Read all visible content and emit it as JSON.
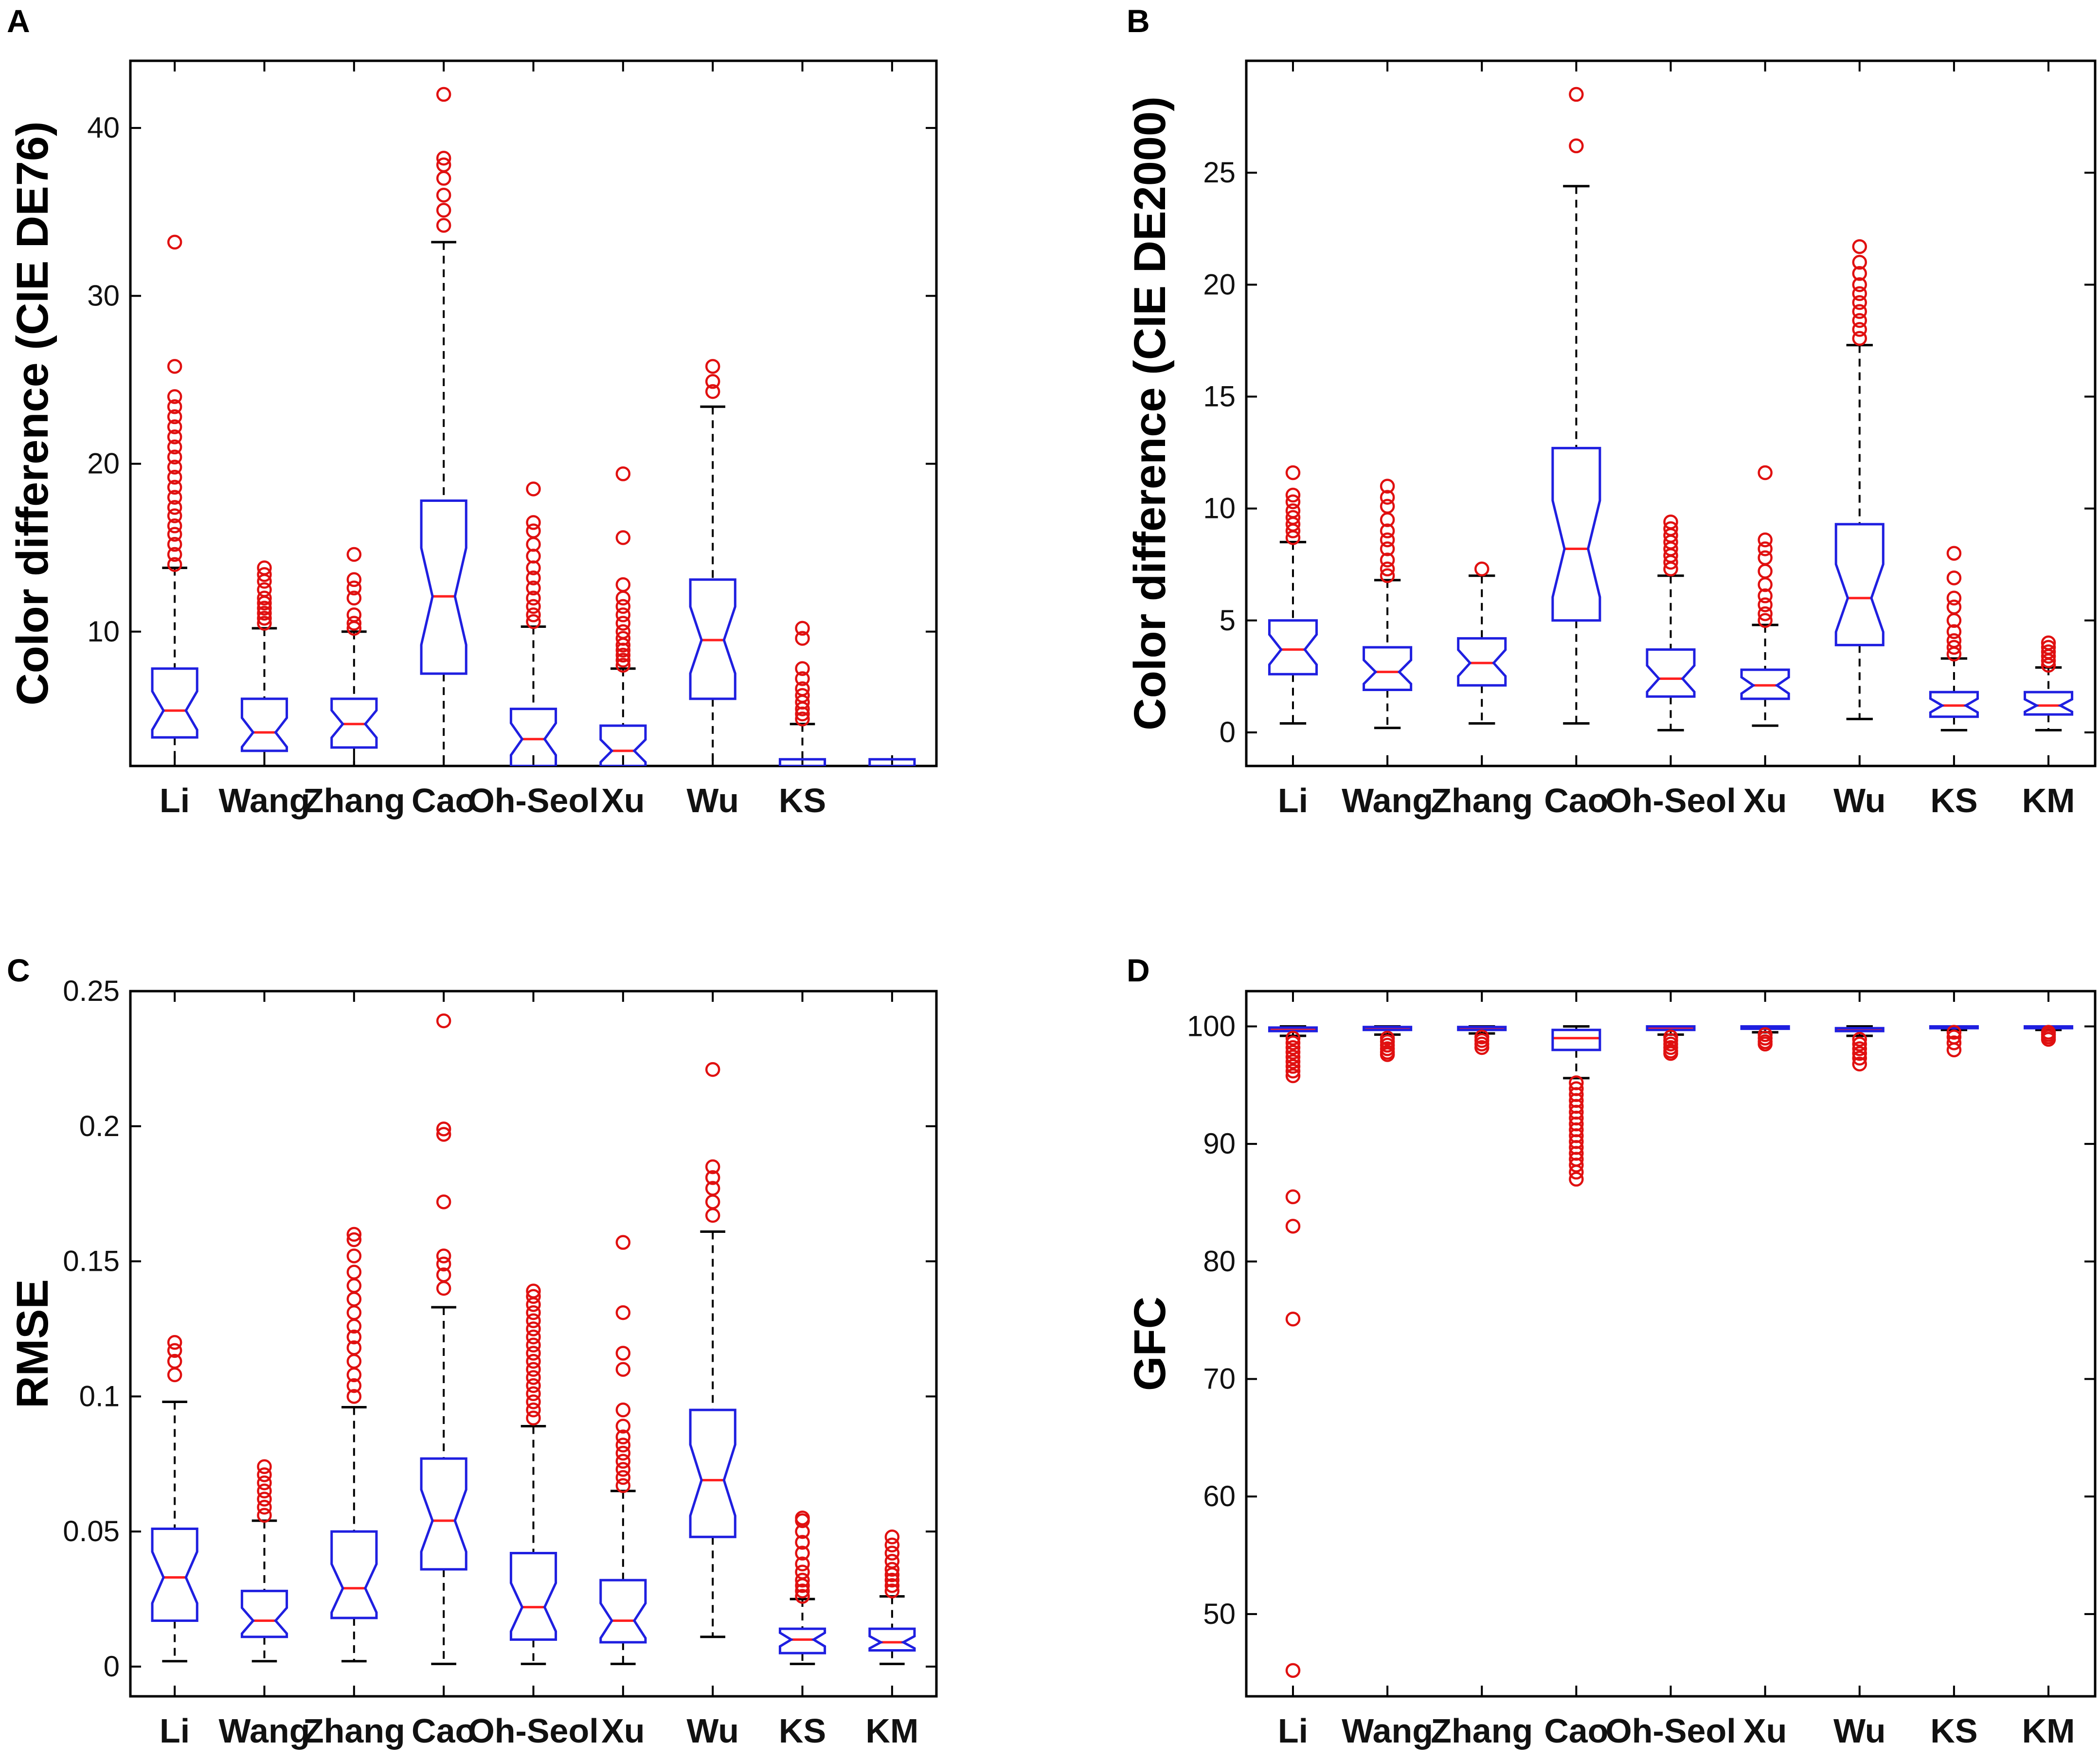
{
  "colors": {
    "box": "#1f1fe0",
    "median": "#ff2020",
    "outlier": "#e01010",
    "whisker": "#000000",
    "frame": "#000000"
  },
  "chart_data": [
    {
      "panel": "A",
      "type": "boxplot",
      "ylabel": "Color difference (CIE DE76)",
      "ylim": [
        2,
        44
      ],
      "yticks": [
        10,
        20,
        30,
        40
      ],
      "notched": true,
      "categories": [
        "Li",
        "Wang",
        "Zhang",
        "Cao",
        "Oh-Seol",
        "Xu",
        "Wu",
        "KS",
        ""
      ],
      "boxes": [
        {
          "name": "Li",
          "q1": 3.7,
          "median": 5.3,
          "q3": 7.8,
          "wlo": 2,
          "whi": 13.8,
          "outliers": [
            14.0,
            14.6,
            15.2,
            15.8,
            16.3,
            16.9,
            17.4,
            18.0,
            18.6,
            19.2,
            19.8,
            20.4,
            21.0,
            21.6,
            22.2,
            22.8,
            23.4,
            24.0,
            25.8,
            33.2
          ]
        },
        {
          "name": "Wang",
          "q1": 2.9,
          "median": 4.0,
          "q3": 6.0,
          "wlo": 2,
          "whi": 10.2,
          "outliers": [
            10.5,
            10.8,
            11.1,
            11.4,
            11.7,
            12.0,
            12.5,
            13.0,
            13.4,
            13.8
          ]
        },
        {
          "name": "Zhang",
          "q1": 3.1,
          "median": 4.5,
          "q3": 6.0,
          "wlo": 2,
          "whi": 10.0,
          "outliers": [
            10.2,
            10.5,
            11.0,
            12.0,
            12.6,
            13.1,
            14.6
          ]
        },
        {
          "name": "Cao",
          "q1": 7.5,
          "median": 12.1,
          "q3": 17.8,
          "wlo": 2,
          "whi": 33.2,
          "outliers": [
            34.2,
            35.1,
            36.0,
            37.0,
            37.8,
            38.2,
            42.0
          ]
        },
        {
          "name": "Oh-Seol",
          "q1": 2,
          "median": 3.6,
          "q3": 5.4,
          "wlo": 2,
          "whi": 10.3,
          "outliers": [
            10.6,
            11.0,
            11.5,
            12.0,
            12.6,
            13.2,
            13.8,
            14.5,
            15.2,
            16.0,
            16.5,
            18.5
          ]
        },
        {
          "name": "Xu",
          "q1": 2,
          "median": 2.9,
          "q3": 4.4,
          "wlo": 2,
          "whi": 7.8,
          "outliers": [
            8.0,
            8.3,
            8.6,
            8.9,
            9.2,
            9.6,
            10.0,
            10.5,
            11.0,
            11.5,
            12.0,
            12.8,
            15.6,
            19.4
          ]
        },
        {
          "name": "Wu",
          "q1": 6.0,
          "median": 9.5,
          "q3": 13.1,
          "wlo": 2,
          "whi": 23.4,
          "outliers": [
            24.3,
            24.9,
            25.8
          ]
        },
        {
          "name": "KS",
          "q1": 2,
          "median": 2,
          "q3": 2.4,
          "wlo": 2,
          "whi": 4.5,
          "outliers": [
            4.8,
            5.1,
            5.4,
            5.8,
            6.2,
            6.6,
            7.2,
            7.8,
            9.6,
            10.2
          ]
        },
        {
          "name": "",
          "q1": 2,
          "median": 2,
          "q3": 2.4,
          "wlo": 2,
          "whi": 2,
          "outliers": []
        }
      ]
    },
    {
      "panel": "B",
      "type": "boxplot",
      "ylabel": "Color difference (CIE DE2000)",
      "ylim": [
        -1.5,
        30
      ],
      "yticks": [
        0,
        5,
        10,
        15,
        20,
        25
      ],
      "notched": true,
      "categories": [
        "Li",
        "Wang",
        "Zhang",
        "Cao",
        "Oh-Seol",
        "Xu",
        "Wu",
        "KS",
        "KM"
      ],
      "boxes": [
        {
          "name": "Li",
          "q1": 2.6,
          "median": 3.7,
          "q3": 5.0,
          "wlo": 0.4,
          "whi": 8.5,
          "outliers": [
            8.7,
            9.0,
            9.3,
            9.6,
            9.9,
            10.3,
            10.6,
            11.6
          ]
        },
        {
          "name": "Wang",
          "q1": 1.9,
          "median": 2.7,
          "q3": 3.8,
          "wlo": 0.2,
          "whi": 6.8,
          "outliers": [
            7.0,
            7.3,
            7.7,
            8.2,
            8.6,
            9.0,
            9.5,
            10.1,
            10.5,
            11.0
          ]
        },
        {
          "name": "Zhang",
          "q1": 2.1,
          "median": 3.1,
          "q3": 4.2,
          "wlo": 0.4,
          "whi": 7.0,
          "outliers": [
            7.3
          ]
        },
        {
          "name": "Cao",
          "q1": 5.0,
          "median": 8.2,
          "q3": 12.7,
          "wlo": 0.4,
          "whi": 24.4,
          "outliers": [
            26.2,
            28.5
          ]
        },
        {
          "name": "Oh-Seol",
          "q1": 1.6,
          "median": 2.4,
          "q3": 3.7,
          "wlo": 0.1,
          "whi": 7.0,
          "outliers": [
            7.3,
            7.6,
            7.9,
            8.2,
            8.5,
            8.8,
            9.1,
            9.4
          ]
        },
        {
          "name": "Xu",
          "q1": 1.5,
          "median": 2.1,
          "q3": 2.8,
          "wlo": 0.3,
          "whi": 4.8,
          "outliers": [
            5.0,
            5.3,
            5.7,
            6.1,
            6.6,
            7.2,
            7.8,
            8.2,
            8.6,
            11.6
          ]
        },
        {
          "name": "Wu",
          "q1": 3.9,
          "median": 6.0,
          "q3": 9.3,
          "wlo": 0.6,
          "whi": 17.3,
          "outliers": [
            17.6,
            18.0,
            18.4,
            18.8,
            19.2,
            19.6,
            20.0,
            20.5,
            21.0,
            21.7
          ]
        },
        {
          "name": "KS",
          "q1": 0.7,
          "median": 1.2,
          "q3": 1.8,
          "wlo": 0.1,
          "whi": 3.3,
          "outliers": [
            3.5,
            3.8,
            4.1,
            4.5,
            5.0,
            5.6,
            6.0,
            6.9,
            8.0
          ]
        },
        {
          "name": "KM",
          "q1": 0.8,
          "median": 1.2,
          "q3": 1.8,
          "wlo": 0.1,
          "whi": 2.9,
          "outliers": [
            3.0,
            3.2,
            3.4,
            3.6,
            3.8,
            4.0
          ]
        }
      ]
    },
    {
      "panel": "C",
      "type": "boxplot",
      "ylabel": "RMSE",
      "ylim": [
        -0.011,
        0.25
      ],
      "yticks": [
        0,
        0.05,
        0.1,
        0.15,
        0.2,
        0.25
      ],
      "notched": true,
      "categories": [
        "Li",
        "Wang",
        "Zhang",
        "Cao",
        "Oh-Seol",
        "Xu",
        "Wu",
        "KS",
        "KM"
      ],
      "boxes": [
        {
          "name": "Li",
          "q1": 0.017,
          "median": 0.033,
          "q3": 0.051,
          "wlo": 0.002,
          "whi": 0.098,
          "outliers": [
            0.108,
            0.113,
            0.117,
            0.12
          ]
        },
        {
          "name": "Wang",
          "q1": 0.011,
          "median": 0.017,
          "q3": 0.028,
          "wlo": 0.002,
          "whi": 0.054,
          "outliers": [
            0.056,
            0.059,
            0.062,
            0.065,
            0.068,
            0.071,
            0.074
          ]
        },
        {
          "name": "Zhang",
          "q1": 0.018,
          "median": 0.029,
          "q3": 0.05,
          "wlo": 0.002,
          "whi": 0.096,
          "outliers": [
            0.1,
            0.104,
            0.108,
            0.113,
            0.118,
            0.122,
            0.126,
            0.131,
            0.136,
            0.141,
            0.146,
            0.152,
            0.158,
            0.16
          ]
        },
        {
          "name": "Cao",
          "q1": 0.036,
          "median": 0.054,
          "q3": 0.077,
          "wlo": 0.001,
          "whi": 0.133,
          "outliers": [
            0.14,
            0.145,
            0.149,
            0.152,
            0.172,
            0.197,
            0.199,
            0.239
          ]
        },
        {
          "name": "Oh-Seol",
          "q1": 0.01,
          "median": 0.022,
          "q3": 0.042,
          "wlo": 0.001,
          "whi": 0.089,
          "outliers": [
            0.092,
            0.095,
            0.098,
            0.101,
            0.104,
            0.107,
            0.11,
            0.113,
            0.116,
            0.119,
            0.122,
            0.125,
            0.128,
            0.131,
            0.134,
            0.137,
            0.139
          ]
        },
        {
          "name": "Xu",
          "q1": 0.009,
          "median": 0.017,
          "q3": 0.032,
          "wlo": 0.001,
          "whi": 0.065,
          "outliers": [
            0.067,
            0.07,
            0.073,
            0.076,
            0.079,
            0.082,
            0.085,
            0.089,
            0.095,
            0.11,
            0.116,
            0.131,
            0.157
          ]
        },
        {
          "name": "Wu",
          "q1": 0.048,
          "median": 0.069,
          "q3": 0.095,
          "wlo": 0.011,
          "whi": 0.161,
          "outliers": [
            0.167,
            0.172,
            0.177,
            0.181,
            0.185,
            0.221
          ]
        },
        {
          "name": "KS",
          "q1": 0.005,
          "median": 0.01,
          "q3": 0.014,
          "wlo": 0.001,
          "whi": 0.025,
          "outliers": [
            0.026,
            0.028,
            0.03,
            0.032,
            0.035,
            0.038,
            0.042,
            0.046,
            0.05,
            0.054,
            0.055
          ]
        },
        {
          "name": "KM",
          "q1": 0.006,
          "median": 0.009,
          "q3": 0.014,
          "wlo": 0.001,
          "whi": 0.026,
          "outliers": [
            0.028,
            0.03,
            0.032,
            0.034,
            0.036,
            0.039,
            0.042,
            0.045,
            0.048
          ]
        }
      ]
    },
    {
      "panel": "D",
      "type": "boxplot",
      "ylabel": "GFC",
      "ylim": [
        43,
        103
      ],
      "yticks": [
        50,
        60,
        70,
        80,
        90,
        100
      ],
      "notched": false,
      "categories": [
        "Li",
        "Wang",
        "Zhang",
        "Cao",
        "Oh-Seol",
        "Xu",
        "Wu",
        "KS",
        "KM"
      ],
      "boxes": [
        {
          "name": "Li",
          "q1": 99.6,
          "median": 99.8,
          "q3": 99.9,
          "wlo": 99.2,
          "whi": 100,
          "outliers": [
            99.0,
            98.6,
            98.2,
            97.8,
            97.4,
            97.0,
            96.6,
            96.2,
            95.8,
            85.5,
            83.0,
            75.1,
            45.2
          ]
        },
        {
          "name": "Wang",
          "q1": 99.7,
          "median": 99.85,
          "q3": 99.95,
          "wlo": 99.3,
          "whi": 100,
          "outliers": [
            99.0,
            98.7,
            98.4,
            98.1,
            97.8,
            97.6
          ]
        },
        {
          "name": "Zhang",
          "q1": 99.7,
          "median": 99.85,
          "q3": 99.95,
          "wlo": 99.4,
          "whi": 100,
          "outliers": [
            99.1,
            98.8,
            98.5,
            98.2
          ]
        },
        {
          "name": "Cao",
          "q1": 98.0,
          "median": 99.0,
          "q3": 99.7,
          "wlo": 95.6,
          "whi": 100,
          "outliers": [
            95.2,
            94.7,
            94.2,
            93.7,
            93.2,
            92.7,
            92.2,
            91.7,
            91.2,
            90.7,
            90.2,
            89.7,
            89.2,
            88.7,
            88.2,
            87.6,
            87.0
          ]
        },
        {
          "name": "Oh-Seol",
          "q1": 99.7,
          "median": 99.9,
          "q3": 100,
          "wlo": 99.3,
          "whi": 100,
          "outliers": [
            99.1,
            98.8,
            98.5,
            98.2,
            97.9,
            97.7
          ]
        },
        {
          "name": "Xu",
          "q1": 99.8,
          "median": 99.9,
          "q3": 100,
          "wlo": 99.5,
          "whi": 100,
          "outliers": [
            99.3,
            99.0,
            98.7,
            98.5
          ]
        },
        {
          "name": "Wu",
          "q1": 99.6,
          "median": 99.75,
          "q3": 99.85,
          "wlo": 99.2,
          "whi": 100,
          "outliers": [
            98.9,
            98.5,
            98.1,
            97.7,
            97.3,
            96.8
          ]
        },
        {
          "name": "KS",
          "q1": 99.85,
          "median": 99.95,
          "q3": 100,
          "wlo": 99.7,
          "whi": 100,
          "outliers": [
            99.5,
            99.1,
            98.6,
            98.0
          ]
        },
        {
          "name": "KM",
          "q1": 99.85,
          "median": 99.95,
          "q3": 100,
          "wlo": 99.7,
          "whi": 100,
          "outliers": [
            99.5,
            99.3,
            99.1,
            98.9
          ]
        }
      ]
    }
  ]
}
